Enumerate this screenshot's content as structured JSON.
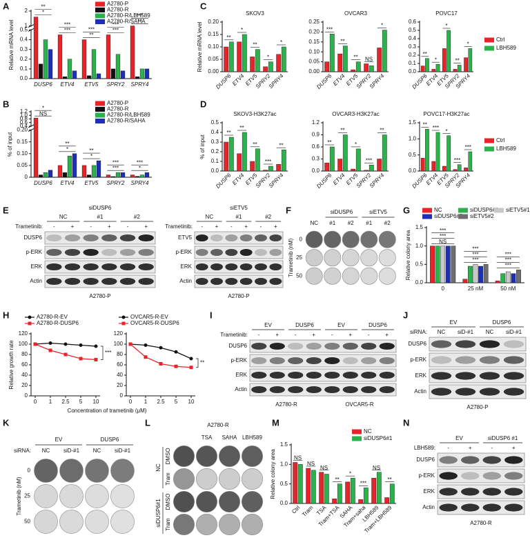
{
  "panel_letters": [
    "A",
    "B",
    "C",
    "D",
    "E",
    "F",
    "G",
    "H",
    "I",
    "J",
    "K",
    "L",
    "M",
    "N"
  ],
  "chart_data": [
    {
      "type": "bar",
      "ylabel": "Relative mRNA level",
      "categories": [
        "DUSP6",
        "ETV4",
        "ETV5",
        "SPRY2",
        "SPRY4"
      ],
      "series": [
        {
          "name": "A2780-P",
          "color": "#e8232a",
          "values": [
            1.6,
            0.45,
            0.4,
            0.45,
            1.0
          ]
        },
        {
          "name": "A2780-R",
          "color": "#111111",
          "values": [
            0.15,
            0.02,
            0.03,
            0.1,
            0.02
          ]
        },
        {
          "name": "A2780-R/LBH589",
          "color": "#2bb24c",
          "values": [
            0.4,
            0.2,
            0.3,
            0.25,
            0.1
          ]
        },
        {
          "name": "A2780-R/SAHA",
          "color": "#1f2fb5",
          "values": [
            0.3,
            0.08,
            0.05,
            0.08,
            0.1
          ]
        }
      ],
      "ylim": [
        0,
        2
      ],
      "ybreak": [
        0.5,
        1
      ],
      "yticks": [
        {
          "value": 0,
          "label": "0.0"
        },
        0.1,
        0.2,
        0.3,
        0.4,
        0.5,
        1,
        2
      ],
      "annotations": [
        "*",
        "**",
        "***",
        "***",
        "**",
        "***",
        "***",
        "***",
        "**",
        "***"
      ],
      "legend": "top-right"
    },
    {
      "type": "bar",
      "ylabel": "% of input",
      "categories": [
        "DUSP6",
        "ETV4",
        "ETV5",
        "SPRY2",
        "SPRY4"
      ],
      "series": [
        {
          "name": "A2780-P",
          "color": "#e8232a",
          "values": [
            0.85,
            0.05,
            0.05,
            0.01,
            0.01
          ]
        },
        {
          "name": "A2780-R",
          "color": "#111111",
          "values": [
            0.01,
            0.02,
            0.01,
            0.003,
            0.004
          ]
        },
        {
          "name": "A2780-R/LBH589",
          "color": "#2bb24c",
          "values": [
            0.02,
            0.09,
            0.05,
            0.02,
            0.01
          ]
        },
        {
          "name": "A2780-R/SAHA",
          "color": "#1f2fb5",
          "values": [
            0.03,
            0.1,
            0.07,
            0.02,
            0.02
          ]
        }
      ],
      "ylim": [
        0,
        1.2
      ],
      "ybreak": [
        0.2,
        0.4
      ],
      "yticks": [
        0,
        0.05,
        {
          "value": 0.1,
          "label": "0.10"
        },
        0.15,
        {
          "value": 0.2,
          "label": "0.20"
        },
        0.4,
        0.6,
        0.8,
        {
          "value": 1,
          "label": "1.0"
        },
        1.2
      ],
      "annotations": [
        "NS",
        "*",
        "*",
        "**",
        "*",
        "**",
        "***",
        "***",
        "*",
        "***"
      ],
      "legend": "top-right"
    },
    {
      "type": "bar",
      "title": "SKOV3",
      "ylabel": "Relative mRNA level",
      "categories": [
        "DUSP6",
        "ETV4",
        "ETV5",
        "SPRY2",
        "SPRY4"
      ],
      "series": [
        {
          "color": "#e8232a",
          "values": [
            0.1,
            0.12,
            0.06,
            0.02,
            0.07
          ]
        },
        {
          "color": "#2bb24c",
          "values": [
            0.12,
            0.15,
            0.09,
            0.04,
            0.1
          ]
        }
      ],
      "ylim": [
        0,
        0.2
      ],
      "yticks": [
        {
          "value": 0,
          "label": "0.00"
        },
        0.05,
        {
          "value": 0.1,
          "label": "0.10"
        },
        0.15,
        {
          "value": 0.2,
          "label": "0.20"
        }
      ],
      "annotations": [
        "**",
        "*",
        "**",
        "*",
        "*"
      ]
    },
    {
      "type": "bar",
      "title": "OVCAR3",
      "categories": [
        "DUSP6",
        "ETV4",
        "ETV5",
        "SPRY2",
        "SPRY4"
      ],
      "series": [
        {
          "color": "#e8232a",
          "values": [
            0.05,
            0.09,
            0.01,
            0.04,
            0.12
          ]
        },
        {
          "color": "#2bb24c",
          "values": [
            0.19,
            0.13,
            0.05,
            0.03,
            0.21
          ]
        }
      ],
      "ylim": [
        0,
        0.25
      ],
      "yticks": [
        {
          "value": 0,
          "label": "0.00"
        },
        0.05,
        {
          "value": 0.1,
          "label": "0.10"
        },
        0.15,
        {
          "value": 0.2,
          "label": "0.20"
        },
        0.25
      ],
      "annotations": [
        "***",
        "**",
        "**",
        "NS",
        "*"
      ]
    },
    {
      "type": "bar",
      "title": "POVC17",
      "categories": [
        "DUSP6",
        "ETV4",
        "ETV5",
        "SPRY2",
        "SPRY4"
      ],
      "series": [
        {
          "name": "Ctrl",
          "color": "#e8232a",
          "values": [
            0.07,
            0.03,
            0.28,
            0.03,
            0.17
          ]
        },
        {
          "name": "LBH589",
          "color": "#2bb24c",
          "values": [
            0.16,
            0.09,
            0.5,
            0.08,
            0.28
          ]
        }
      ],
      "ylim": [
        0,
        0.6
      ],
      "yticks": [
        {
          "value": 0,
          "label": "0.0"
        },
        0.1,
        0.2,
        0.3,
        0.4,
        0.5,
        0.6
      ],
      "annotations": [
        "**",
        "*",
        "*",
        "**",
        "*"
      ],
      "legend": "right"
    },
    {
      "type": "bar",
      "title": "SKOV3-H3K27ac",
      "ylabel": "% of input",
      "categories": [
        "DUSP6",
        "ETV4",
        "ETV5",
        "SPRY2",
        "SPRY4"
      ],
      "series": [
        {
          "color": "#e8232a",
          "values": [
            0.3,
            0.18,
            0.1,
            0.01,
            0.07
          ]
        },
        {
          "color": "#2bb24c",
          "values": [
            0.35,
            0.4,
            0.23,
            0.05,
            0.22
          ]
        }
      ],
      "ylim": [
        0,
        0.5
      ],
      "yticks": [
        {
          "value": 0,
          "label": "0.0"
        },
        0.1,
        0.2,
        0.3,
        0.4,
        0.5
      ],
      "annotations": [
        "**",
        "**",
        "**",
        "***",
        "**"
      ]
    },
    {
      "type": "bar",
      "title": "OVCAR3-H3K27ac",
      "categories": [
        "DUSP6",
        "ETV4",
        "ETV5",
        "SPRY2",
        "SPRY4"
      ],
      "series": [
        {
          "color": "#e8232a",
          "values": [
            0.2,
            0.3,
            0.05,
            0.02,
            0.3
          ]
        },
        {
          "color": "#2bb24c",
          "values": [
            0.6,
            0.9,
            0.55,
            0.15,
            0.9
          ]
        }
      ],
      "ylim": [
        0,
        1.2
      ],
      "yticks": [
        {
          "value": 0,
          "label": "0.0"
        },
        0.3,
        0.6,
        0.9,
        1.2
      ],
      "annotations": [
        "**",
        "**",
        "*",
        "***",
        "**"
      ]
    },
    {
      "type": "bar",
      "title": "POVC17-H3K27ac",
      "categories": [
        "DUSP6",
        "ETV4",
        "ETV5",
        "SPRY2",
        "SPRY4"
      ],
      "series": [
        {
          "name": "Ctrl",
          "color": "#e8232a",
          "values": [
            0.4,
            0.3,
            0.15,
            0.05,
            0.1
          ]
        },
        {
          "name": "LBH589",
          "color": "#2bb24c",
          "values": [
            1.3,
            1.2,
            1.1,
            0.2,
            0.6
          ]
        }
      ],
      "ylim": [
        0,
        1.5
      ],
      "yticks": [
        {
          "value": 0,
          "label": "0.0"
        },
        0.5,
        {
          "value": 1,
          "label": "1.0"
        },
        1.5
      ],
      "annotations": [
        "**",
        "***",
        "*",
        "***",
        "***"
      ],
      "legend": "right"
    },
    {
      "type": "bar",
      "ylabel": "Relative colony area",
      "categories": [
        "0",
        "25 nM",
        "50 nM"
      ],
      "series": [
        {
          "name": "NC",
          "color": "#e8232a",
          "values": [
            1.0,
            0.1,
            0.05
          ]
        },
        {
          "name": "siDUSP6#1",
          "color": "#2bb24c",
          "values": [
            1.0,
            0.45,
            0.25
          ]
        },
        {
          "name": "siETV5#1",
          "color": "#c8c8c8",
          "values": [
            1.0,
            0.5,
            0.3
          ]
        },
        {
          "name": "siDUSP6#2",
          "color": "#1f2fb5",
          "values": [
            1.0,
            0.45,
            0.25
          ]
        },
        {
          "name": "siETV5#2",
          "color": "#6e6e6e",
          "values": [
            1.0,
            0.5,
            0.35
          ]
        }
      ],
      "ylim": [
        0,
        1.5
      ],
      "yticks": [
        {
          "value": 0,
          "label": "0.0"
        },
        0.5,
        {
          "value": 1,
          "label": "1.0"
        },
        1.5
      ],
      "annotations": [
        "NS",
        "***",
        "***",
        "***",
        "***",
        "***",
        "***",
        "***",
        "***"
      ],
      "legend": "top"
    },
    {
      "type": "line",
      "ylabel": "Relative growth rate",
      "xlabel": "Concentration of trametinib (μM)",
      "categories": [
        "0",
        "1",
        "2.5",
        "5",
        "10"
      ],
      "series": [
        {
          "name": "A2780-R-EV",
          "color": "#111111",
          "values": [
            100,
            102,
            100,
            98,
            96
          ]
        },
        {
          "name": "A2780-R-DUSP6",
          "color": "#e8232a",
          "values": [
            100,
            88,
            80,
            72,
            70
          ]
        }
      ],
      "ylim": [
        0,
        120
      ],
      "yticks": [
        0,
        20,
        40,
        60,
        80,
        100,
        120
      ],
      "annotations": [
        "***"
      ],
      "legend": "top"
    },
    {
      "type": "line",
      "categories": [
        "0",
        "1",
        "2.5",
        "5",
        "10"
      ],
      "series": [
        {
          "name": "OVCAR5-R-EV",
          "color": "#111111",
          "values": [
            100,
            98,
            93,
            85,
            72
          ]
        },
        {
          "name": "OVCAR5-R-DUSP6",
          "color": "#e8232a",
          "values": [
            100,
            75,
            62,
            57,
            55
          ]
        }
      ],
      "ylim": [
        0,
        120
      ],
      "yticks": [
        0,
        20,
        40,
        60,
        80,
        100,
        120
      ],
      "annotations": [
        "**"
      ],
      "legend": "top"
    },
    {
      "type": "bar",
      "ylabel": "Relative colony area",
      "categories": [
        "Ctrl",
        "Tram",
        "TSA",
        "Tram+TSA",
        "SAHA",
        "Tram+saha",
        "LBH589",
        "Tram+LBH589"
      ],
      "series": [
        {
          "name": "NC",
          "color": "#e8232a",
          "values": [
            1.05,
            0.9,
            0.8,
            0.12,
            0.55,
            0.1,
            0.65,
            0.15
          ]
        },
        {
          "name": "siDUSP6#1",
          "color": "#2bb24c",
          "values": [
            1.0,
            0.85,
            0.75,
            0.5,
            0.65,
            0.4,
            0.8,
            0.5
          ]
        }
      ],
      "ylim": [
        0,
        1.5
      ],
      "yticks": [
        {
          "value": 0,
          "label": "0.0"
        },
        0.5,
        {
          "value": 1,
          "label": "1.0"
        },
        1.5
      ],
      "annotations": [
        "NS",
        "NS",
        "NS",
        "**",
        "*",
        "***",
        "NS",
        "**"
      ],
      "legend": "top-right"
    }
  ],
  "blots": [
    {
      "title": "siDUSP6",
      "groups": [
        "NC",
        "#1",
        "#2"
      ],
      "treatment": "Trametinib:",
      "lanes": [
        "-",
        "+",
        "-",
        "+",
        "-",
        "+"
      ],
      "rows": [
        "DUSP6",
        "p-ERK",
        "ERK",
        "Actin"
      ],
      "captions": [
        "A2780-P"
      ]
    },
    {
      "title": "siETV5",
      "groups": [
        "NC",
        "#1",
        "#2"
      ],
      "treatment": "Trametinib:",
      "lanes": [
        "-",
        "+",
        "-",
        "+",
        "-",
        "+"
      ],
      "rows": [
        "ETV5",
        "p-ERK",
        "ERK",
        "Actin"
      ],
      "captions": [
        "A2780-P"
      ]
    },
    {
      "groups": [
        "EV",
        "DUSP6",
        "EV",
        "DUSP6"
      ],
      "treatment": "Trametinib:",
      "lanes": [
        "-",
        "+",
        "-",
        "+",
        "-",
        "+",
        "-",
        "+"
      ],
      "rows": [
        "DUSP6",
        "p-ERK",
        "ERK",
        "Actin"
      ],
      "captions": [
        "A2780-R",
        "OVCAR5-R"
      ]
    },
    {
      "groups": [
        "EV",
        "DUSP6"
      ],
      "treatment": "siRNA:",
      "lanes": [
        "NC",
        "siD-#1",
        "NC",
        "siD-#1"
      ],
      "rows": [
        "DUSP6",
        "p-ERK",
        "ERK",
        "Actin"
      ],
      "captions": [
        "A2780-P"
      ]
    },
    {
      "groups": [
        "EV",
        "siDUSP6 #1"
      ],
      "treatment": "LBH589:",
      "lanes": [
        "-",
        "+",
        "-",
        "+"
      ],
      "rows": [
        "DUSP6",
        "p-ERK",
        "ERK",
        "Actin"
      ],
      "captions": [
        "A2780-R"
      ]
    }
  ],
  "plates": [
    {
      "groups": [
        "siDUSP6",
        "siETV5"
      ],
      "columns": [
        "NC",
        "#1",
        "#2",
        "#1",
        "#2"
      ],
      "ylabel": "Trametinib (nM)",
      "rows": [
        "0",
        "25",
        "50"
      ]
    },
    {
      "label": "siRNA:",
      "groups": [
        "EV",
        "DUSP6"
      ],
      "columns": [
        "NC",
        "siD-#1",
        "NC",
        "siD-#1"
      ],
      "ylabel": "Trametinib (nM)",
      "rows": [
        "0",
        "25",
        "50"
      ]
    },
    {
      "title": "A2780-R",
      "columns": [
        "TSA",
        "SAHA",
        "LBH589"
      ],
      "rows": [
        "DMSO",
        "Tram",
        "DMSO",
        "Tram"
      ],
      "side_groups": [
        "NC",
        "siDUSP6#1"
      ]
    }
  ]
}
